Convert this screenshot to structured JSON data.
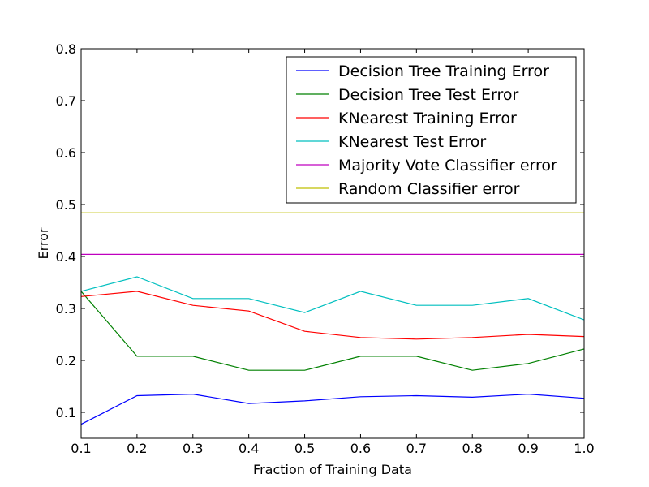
{
  "chart_data": {
    "type": "line",
    "title": "",
    "xlabel": "Fraction of Training Data",
    "ylabel": "Error",
    "xlim": [
      0.1,
      1.0
    ],
    "ylim": [
      0.05,
      0.8
    ],
    "x_ticks": [
      "0.1",
      "0.2",
      "0.3",
      "0.4",
      "0.5",
      "0.6",
      "0.7",
      "0.8",
      "0.9",
      "1.0"
    ],
    "y_ticks": [
      "0.1",
      "0.2",
      "0.3",
      "0.4",
      "0.5",
      "0.6",
      "0.7",
      "0.8"
    ],
    "grid": false,
    "legend_position": "top-right",
    "x": [
      0.1,
      0.2,
      0.3,
      0.4,
      0.5,
      0.6,
      0.7,
      0.8,
      0.9,
      1.0
    ],
    "series": [
      {
        "name": "Decision Tree Training Error",
        "color": "#0000ff",
        "values": [
          0.077,
          0.132,
          0.135,
          0.117,
          0.122,
          0.13,
          0.132,
          0.129,
          0.135,
          0.127
        ]
      },
      {
        "name": "Decision Tree Test Error",
        "color": "#008000",
        "values": [
          0.333,
          0.208,
          0.208,
          0.181,
          0.181,
          0.208,
          0.208,
          0.181,
          0.194,
          0.222
        ]
      },
      {
        "name": "KNearest Training Error",
        "color": "#ff0000",
        "values": [
          0.323,
          0.333,
          0.306,
          0.295,
          0.256,
          0.244,
          0.241,
          0.244,
          0.25,
          0.246
        ]
      },
      {
        "name": "KNearest Test Error",
        "color": "#00bfbf",
        "values": [
          0.333,
          0.361,
          0.319,
          0.319,
          0.292,
          0.333,
          0.306,
          0.306,
          0.319,
          0.278
        ]
      },
      {
        "name": "Majority Vote Classifier error",
        "color": "#bf00bf",
        "values": [
          0.404,
          0.404,
          0.404,
          0.404,
          0.404,
          0.404,
          0.404,
          0.404,
          0.404,
          0.404
        ]
      },
      {
        "name": "Random Classifier error",
        "color": "#bfbf00",
        "values": [
          0.484,
          0.484,
          0.484,
          0.484,
          0.484,
          0.484,
          0.484,
          0.484,
          0.484,
          0.484
        ]
      }
    ]
  }
}
